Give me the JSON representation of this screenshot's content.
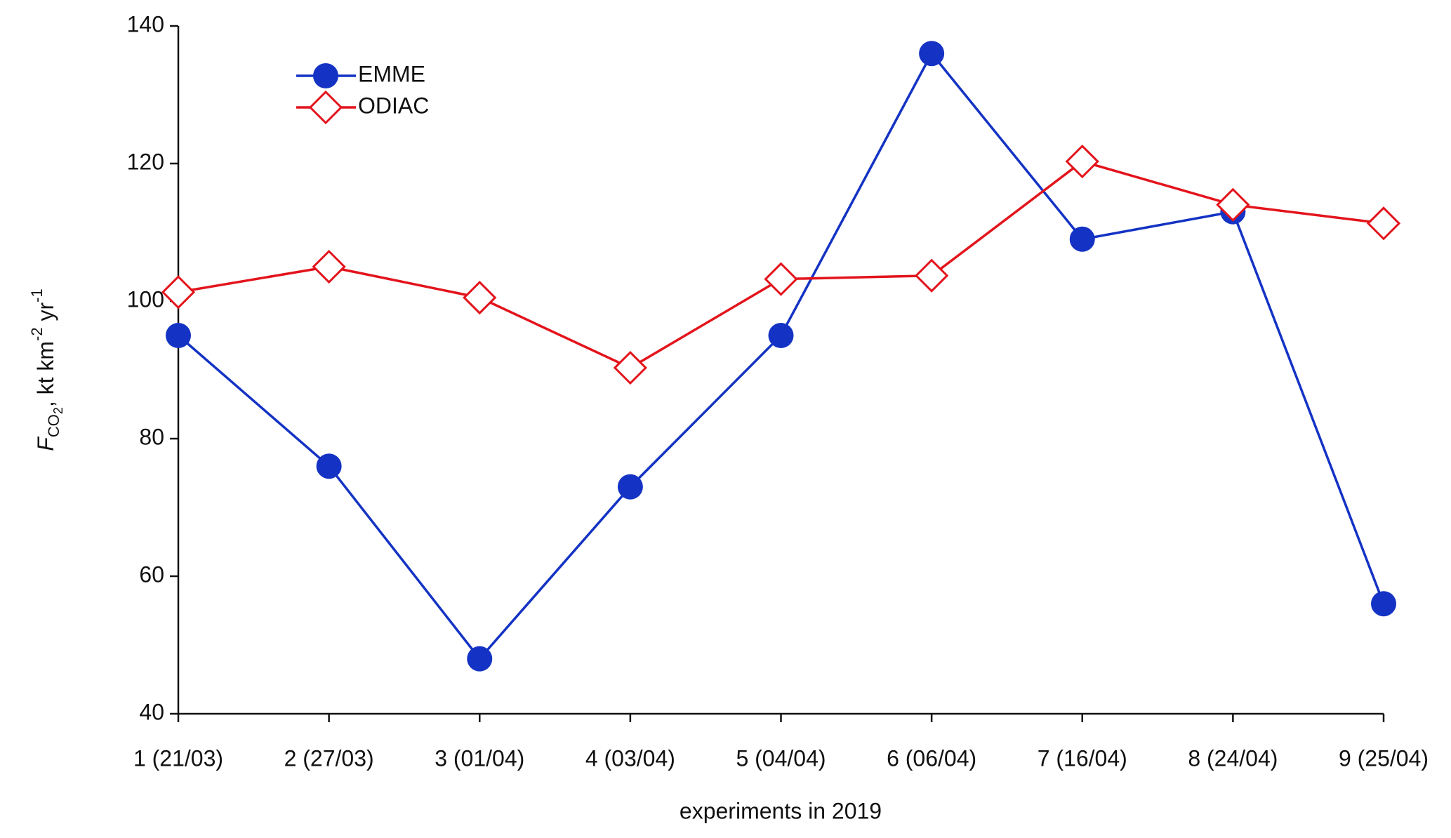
{
  "chart_data": {
    "type": "line",
    "x_label": "experiments in 2019",
    "y_label_parts": [
      "F",
      "CO",
      "2",
      ", kt km",
      "-2",
      " yr",
      "-1"
    ],
    "categories": [
      "1 (21/03)",
      "2 (27/03)",
      "3 (01/04)",
      "4 (03/04)",
      "5 (04/04)",
      "6 (06/04)",
      "7 (16/04)",
      "8 (24/04)",
      "9 (25/04)"
    ],
    "series": [
      {
        "name": "EMME",
        "color": "#1433c4",
        "marker": "circle",
        "values": [
          95,
          76,
          48,
          73,
          95,
          136,
          109,
          113,
          56
        ]
      },
      {
        "name": "ODIAC",
        "color": "#e3141c",
        "marker": "diamond",
        "values": [
          101.3,
          105,
          100.5,
          90.3,
          103.2,
          103.7,
          120.3,
          114,
          111.3
        ]
      }
    ],
    "ylim": [
      40,
      140
    ],
    "yticks": [
      40,
      60,
      80,
      100,
      120,
      140
    ],
    "legend": "upper-left"
  }
}
